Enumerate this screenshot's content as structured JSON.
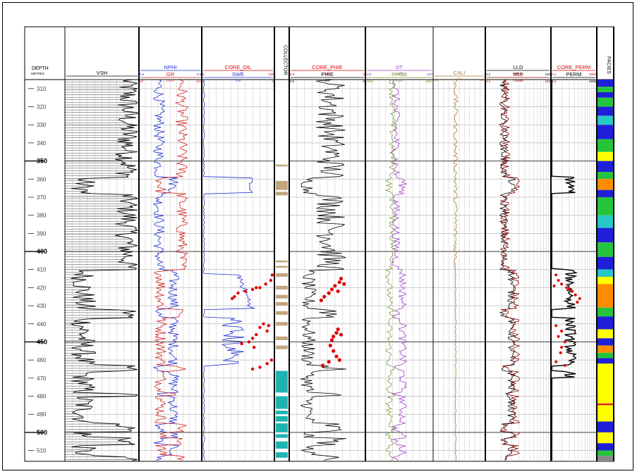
{
  "chart_data": {
    "type": "line",
    "title": "",
    "depth_axis": {
      "label": "DEPTH",
      "unit": "METRES",
      "min": 305,
      "max": 516,
      "ticks": [
        310,
        320,
        330,
        340,
        350,
        360,
        370,
        380,
        390,
        400,
        410,
        420,
        430,
        440,
        450,
        460,
        470,
        480,
        490,
        500,
        510
      ],
      "major": [
        350,
        400,
        450,
        500
      ]
    },
    "tracks": [
      {
        "id": "vsh",
        "curves": [
          {
            "name": "VSH",
            "scale_left": "",
            "scale_right": "",
            "color": "#000000"
          }
        ]
      },
      {
        "id": "nphi-gr",
        "curves": [
          {
            "name": "NPHI",
            "scale_left": "0.5",
            "scale_right": "0.0",
            "unit": "",
            "color": "#1f2fd0"
          },
          {
            "name": "GR",
            "scale_left": "40",
            "scale_right": "110",
            "unit": "GAPI",
            "color": "#d02020"
          }
        ]
      },
      {
        "id": "oil-swe",
        "curves": [
          {
            "name": "CORE_OIL",
            "scale_left": "0",
            "scale_right": "100",
            "unit": "",
            "color": "#e00000"
          },
          {
            "name": "SWE",
            "scale_left": "1",
            "scale_right": "0",
            "unit": "V/V",
            "color": "#1f2fd0"
          }
        ]
      },
      {
        "id": "collector",
        "curves": [
          {
            "name": "COLLECTOR",
            "color": "#c2a47e"
          }
        ]
      },
      {
        "id": "phie",
        "curves": [
          {
            "name": "CORE_PHIE",
            "scale_left": "0.5",
            "scale_right": "0",
            "unit": "V/V",
            "color": "#e00000"
          },
          {
            "name": "PHIE",
            "scale_left": "0.5",
            "scale_right": "0",
            "unit": "V/V",
            "color": "#000000"
          }
        ]
      },
      {
        "id": "dt-rhob",
        "curves": [
          {
            "name": "DT",
            "scale_left": "100",
            "scale_right": "600",
            "unit": "US/M",
            "color": "#a040c8"
          },
          {
            "name": "RHOB",
            "scale_left": "1950",
            "scale_right": "2950",
            "unit": "K/M3",
            "color": "#7a9a3a"
          }
        ]
      },
      {
        "id": "cali",
        "curves": [
          {
            "name": "CALI",
            "scale_left": "150",
            "scale_right": "300",
            "unit": "MM",
            "color": "#a07a30"
          }
        ]
      },
      {
        "id": "res",
        "curves": [
          {
            "name": "LLD",
            "scale_left": "0.2",
            "scale_right": "100",
            "unit": "OHMM",
            "color": "#000000"
          },
          {
            "name": "MLL",
            "scale_left": "0.2",
            "scale_right": "100",
            "unit": "OHMM",
            "color": "#8b0000"
          }
        ]
      },
      {
        "id": "perm",
        "curves": [
          {
            "name": "CORE_PERM",
            "scale_left": "0.1",
            "scale_right": "2000",
            "unit": "",
            "color": "#e00000"
          },
          {
            "name": "PERM",
            "scale_left": "0.1",
            "scale_right": "2000",
            "unit": "",
            "color": "#000000"
          }
        ]
      },
      {
        "id": "facies",
        "curves": [
          {
            "name": "FACIES"
          }
        ]
      }
    ],
    "collector_intervals": [
      {
        "top": 352,
        "bottom": 353,
        "color": "#c2a47e"
      },
      {
        "top": 361,
        "bottom": 366,
        "color": "#c2a47e"
      },
      {
        "top": 367,
        "bottom": 369,
        "color": "#c2a47e"
      },
      {
        "top": 405,
        "bottom": 406,
        "color": "#c2a47e"
      },
      {
        "top": 408,
        "bottom": 409,
        "color": "#c2a47e"
      },
      {
        "top": 412,
        "bottom": 414,
        "color": "#c2a47e"
      },
      {
        "top": 419,
        "bottom": 421,
        "color": "#c2a47e"
      },
      {
        "top": 424,
        "bottom": 426,
        "color": "#c2a47e"
      },
      {
        "top": 428,
        "bottom": 430,
        "color": "#c2a47e"
      },
      {
        "top": 433,
        "bottom": 435,
        "color": "#c2a47e"
      },
      {
        "top": 439,
        "bottom": 441,
        "color": "#c2a47e"
      },
      {
        "top": 447,
        "bottom": 449,
        "color": "#c2a47e"
      },
      {
        "top": 452,
        "bottom": 454,
        "color": "#c2a47e"
      },
      {
        "top": 466,
        "bottom": 478,
        "color": "#1fb3b0"
      },
      {
        "top": 480,
        "bottom": 487,
        "color": "#1fb3b0"
      },
      {
        "top": 488,
        "bottom": 490,
        "color": "#1fb3b0"
      },
      {
        "top": 491,
        "bottom": 494,
        "color": "#1fb3b0"
      },
      {
        "top": 495,
        "bottom": 500,
        "color": "#1fb3b0"
      },
      {
        "top": 501,
        "bottom": 503,
        "color": "#1fb3b0"
      },
      {
        "top": 505,
        "bottom": 509,
        "color": "#1fb3b0"
      },
      {
        "top": 511,
        "bottom": 514,
        "color": "#1fb3b0"
      }
    ],
    "facies_intervals": [
      {
        "top": 305,
        "bottom": 309,
        "color": "#1f1fd8"
      },
      {
        "top": 309,
        "bottom": 312,
        "color": "#25c43c"
      },
      {
        "top": 312,
        "bottom": 315,
        "color": "#1f1fd8"
      },
      {
        "top": 315,
        "bottom": 320,
        "color": "#25c43c"
      },
      {
        "top": 320,
        "bottom": 325,
        "color": "#1f1fd8"
      },
      {
        "top": 325,
        "bottom": 330,
        "color": "#26c7c7"
      },
      {
        "top": 330,
        "bottom": 338,
        "color": "#1f1fd8"
      },
      {
        "top": 338,
        "bottom": 345,
        "color": "#25c43c"
      },
      {
        "top": 345,
        "bottom": 350,
        "color": "#ffff00"
      },
      {
        "top": 350,
        "bottom": 356,
        "color": "#1f1fd8"
      },
      {
        "top": 356,
        "bottom": 360,
        "color": "#25c43c"
      },
      {
        "top": 360,
        "bottom": 366,
        "color": "#ff8c00"
      },
      {
        "top": 366,
        "bottom": 370,
        "color": "#1f1fd8"
      },
      {
        "top": 370,
        "bottom": 380,
        "color": "#25c43c"
      },
      {
        "top": 380,
        "bottom": 387,
        "color": "#26c7c7"
      },
      {
        "top": 387,
        "bottom": 395,
        "color": "#1f1fd8"
      },
      {
        "top": 395,
        "bottom": 403,
        "color": "#25c43c"
      },
      {
        "top": 403,
        "bottom": 410,
        "color": "#1f1fd8"
      },
      {
        "top": 410,
        "bottom": 414,
        "color": "#26c7c7"
      },
      {
        "top": 414,
        "bottom": 418,
        "color": "#ffff00"
      },
      {
        "top": 418,
        "bottom": 431,
        "color": "#ff8c00"
      },
      {
        "top": 431,
        "bottom": 436,
        "color": "#25c43c"
      },
      {
        "top": 436,
        "bottom": 443,
        "color": "#1f1fd8"
      },
      {
        "top": 443,
        "bottom": 448,
        "color": "#ffff00"
      },
      {
        "top": 448,
        "bottom": 452,
        "color": "#1f1fd8"
      },
      {
        "top": 452,
        "bottom": 456,
        "color": "#ff8c00"
      },
      {
        "top": 456,
        "bottom": 459,
        "color": "#25c43c"
      },
      {
        "top": 459,
        "bottom": 462,
        "color": "#1f1fd8"
      },
      {
        "top": 462,
        "bottom": 484,
        "color": "#ffff00"
      },
      {
        "top": 484,
        "bottom": 485,
        "color": "#e02020"
      },
      {
        "top": 485,
        "bottom": 494,
        "color": "#ffff00"
      },
      {
        "top": 494,
        "bottom": 500,
        "color": "#1f1fd8"
      },
      {
        "top": 500,
        "bottom": 506,
        "color": "#ffff00"
      },
      {
        "top": 506,
        "bottom": 510,
        "color": "#1f1fd8"
      },
      {
        "top": 510,
        "bottom": 513,
        "color": "#25c43c"
      },
      {
        "top": 513,
        "bottom": 516,
        "color": "#888888"
      }
    ],
    "core_phie_points": [
      {
        "d": 415,
        "v": 0.16
      },
      {
        "d": 417,
        "v": 0.17
      },
      {
        "d": 419,
        "v": 0.2
      },
      {
        "d": 421,
        "v": 0.22
      },
      {
        "d": 423,
        "v": 0.24
      },
      {
        "d": 425,
        "v": 0.27
      },
      {
        "d": 427,
        "v": 0.29
      },
      {
        "d": 422,
        "v": 0.18
      },
      {
        "d": 418,
        "v": 0.14
      },
      {
        "d": 443,
        "v": 0.18
      },
      {
        "d": 445,
        "v": 0.19
      },
      {
        "d": 447,
        "v": 0.21
      },
      {
        "d": 449,
        "v": 0.22
      },
      {
        "d": 452,
        "v": 0.23
      },
      {
        "d": 455,
        "v": 0.21
      },
      {
        "d": 458,
        "v": 0.19
      },
      {
        "d": 461,
        "v": 0.24
      },
      {
        "d": 463,
        "v": 0.28
      },
      {
        "d": 460,
        "v": 0.17
      },
      {
        "d": 446,
        "v": 0.16
      }
    ],
    "core_oil_points": [
      {
        "d": 413,
        "v": 97
      },
      {
        "d": 416,
        "v": 95
      },
      {
        "d": 418,
        "v": 88
      },
      {
        "d": 420,
        "v": 80
      },
      {
        "d": 421,
        "v": 70
      },
      {
        "d": 422,
        "v": 60
      },
      {
        "d": 423,
        "v": 50
      },
      {
        "d": 425,
        "v": 45
      },
      {
        "d": 426,
        "v": 42
      },
      {
        "d": 420,
        "v": 75
      },
      {
        "d": 440,
        "v": 85
      },
      {
        "d": 442,
        "v": 80
      },
      {
        "d": 444,
        "v": 90
      },
      {
        "d": 446,
        "v": 75
      },
      {
        "d": 448,
        "v": 70
      },
      {
        "d": 450,
        "v": 65
      },
      {
        "d": 451,
        "v": 55
      },
      {
        "d": 453,
        "v": 72
      },
      {
        "d": 460,
        "v": 96
      },
      {
        "d": 462,
        "v": 90
      },
      {
        "d": 464,
        "v": 80
      },
      {
        "d": 465,
        "v": 70
      },
      {
        "d": 441,
        "v": 92
      }
    ],
    "core_perm_points": [
      {
        "d": 413,
        "v": 0.3
      },
      {
        "d": 416,
        "v": 0.5
      },
      {
        "d": 418,
        "v": 1
      },
      {
        "d": 420,
        "v": 3
      },
      {
        "d": 422,
        "v": 10
      },
      {
        "d": 424,
        "v": 20
      },
      {
        "d": 426,
        "v": 50
      },
      {
        "d": 428,
        "v": 30
      },
      {
        "d": 419,
        "v": 0.2
      },
      {
        "d": 421,
        "v": 5
      },
      {
        "d": 441,
        "v": 0.3
      },
      {
        "d": 444,
        "v": 1
      },
      {
        "d": 447,
        "v": 0.5
      },
      {
        "d": 450,
        "v": 2
      },
      {
        "d": 453,
        "v": 1
      },
      {
        "d": 456,
        "v": 0.8
      },
      {
        "d": 461,
        "v": 0.3
      },
      {
        "d": 463,
        "v": 2
      }
    ],
    "grid": true,
    "legend": "header"
  }
}
